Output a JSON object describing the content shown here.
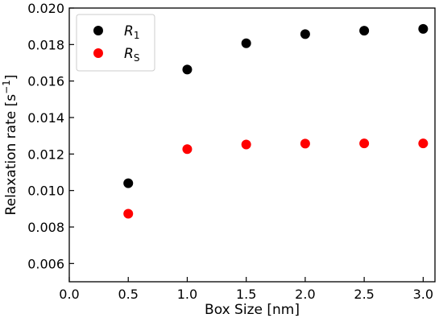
{
  "chart_data": {
    "type": "scatter",
    "xlabel": "Box Size [nm]",
    "ylabel": {
      "text": "Relaxation rate [s",
      "superscript": "−1",
      "close": "]"
    },
    "xlim": [
      0.0,
      3.1
    ],
    "ylim": [
      0.005,
      0.02
    ],
    "x_ticks": [
      "0.0",
      "0.5",
      "1.0",
      "1.5",
      "2.0",
      "2.5",
      "3.0"
    ],
    "y_ticks": [
      "0.006",
      "0.008",
      "0.010",
      "0.012",
      "0.014",
      "0.016",
      "0.018",
      "0.020"
    ],
    "grid": false,
    "legend_position": "top-left",
    "series": [
      {
        "name": "R1",
        "legend": {
          "base": "R",
          "sub": "1"
        },
        "color": "#000000",
        "x": [
          0.5,
          1.0,
          1.5,
          2.0,
          2.5,
          3.0
        ],
        "y": [
          0.0104,
          0.01663,
          0.01807,
          0.01857,
          0.01876,
          0.01886
        ]
      },
      {
        "name": "RS",
        "legend": {
          "base": "R",
          "sub": "S"
        },
        "color": "#ff0000",
        "x": [
          0.5,
          1.0,
          1.5,
          2.0,
          2.5,
          3.0
        ],
        "y": [
          0.00873,
          0.01227,
          0.01252,
          0.01257,
          0.01258,
          0.01258
        ]
      }
    ]
  }
}
